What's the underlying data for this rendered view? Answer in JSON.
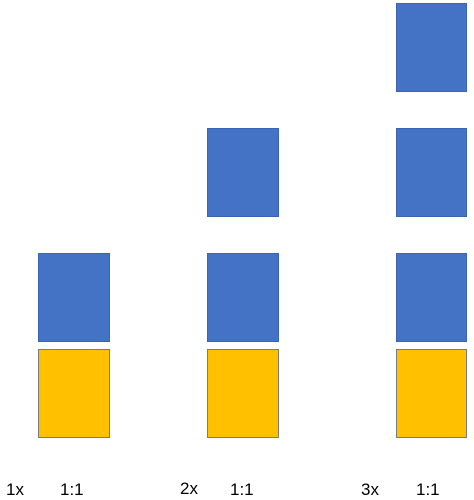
{
  "colors": {
    "blue_block": "#4472c4",
    "yellow_block": "#ffc000",
    "text": "#000000"
  },
  "groups": [
    {
      "multiplier": "1x",
      "ratio": "1:1",
      "blue_blocks": 1,
      "yellow_blocks": 1
    },
    {
      "multiplier": "2x",
      "ratio": "1:1",
      "blue_blocks": 2,
      "yellow_blocks": 1
    },
    {
      "multiplier": "3x",
      "ratio": "1:1",
      "blue_blocks": 3,
      "yellow_blocks": 1
    }
  ]
}
